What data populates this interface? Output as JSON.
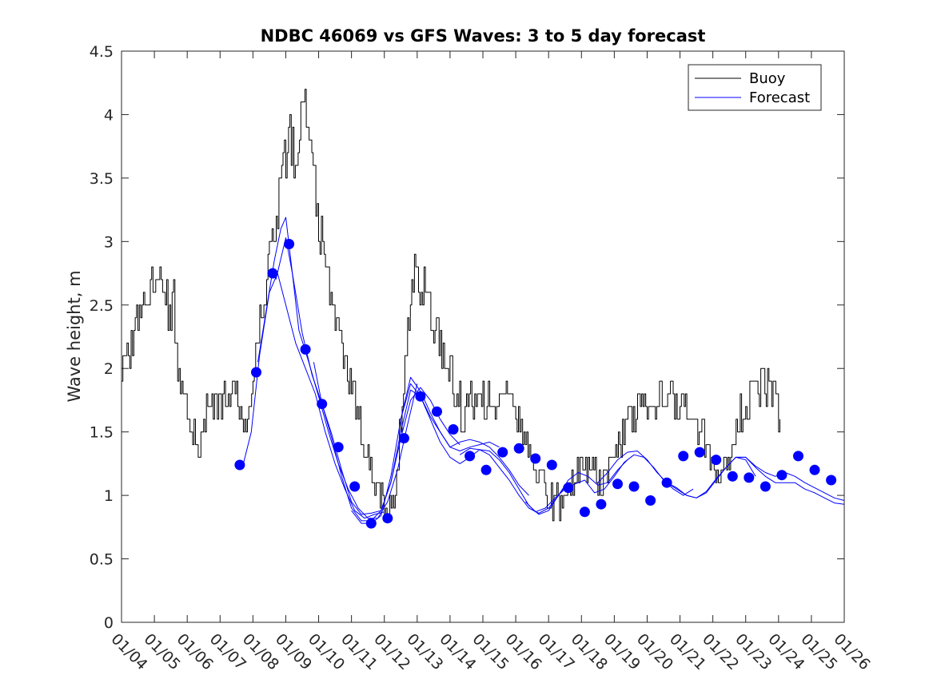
{
  "chart_data": {
    "type": "line",
    "title": "NDBC 46069 vs GFS Waves: 3 to 5 day forecast",
    "xlabel": "",
    "ylabel": "Wave height, m",
    "xlim": [
      0,
      22
    ],
    "ylim": [
      0,
      4.5
    ],
    "y_ticks": [
      0,
      0.5,
      1,
      1.5,
      2,
      2.5,
      3,
      3.5,
      4,
      4.5
    ],
    "y_tick_labels": [
      "0",
      "0.5",
      "1",
      "1.5",
      "2",
      "2.5",
      "3",
      "3.5",
      "4",
      "4.5"
    ],
    "x_tick_labels": [
      "01/04",
      "01/05",
      "01/06",
      "01/07",
      "01/08",
      "01/09",
      "01/10",
      "01/11",
      "01/12",
      "01/13",
      "01/14",
      "01/15",
      "01/16",
      "01/17",
      "01/18",
      "01/19",
      "01/20",
      "01/21",
      "01/22",
      "01/23",
      "01/24",
      "01/25",
      "01/26"
    ],
    "grid": false,
    "legend": {
      "position": "top-right",
      "entries": [
        {
          "label": "Buoy",
          "color": "#000000"
        },
        {
          "label": "Forecast",
          "color": "#0000ff"
        }
      ]
    },
    "buoy_anchors": [
      [
        0.0,
        2.0
      ],
      [
        0.3,
        2.2
      ],
      [
        0.6,
        2.5
      ],
      [
        0.9,
        2.6
      ],
      [
        1.1,
        2.9
      ],
      [
        1.3,
        2.5
      ],
      [
        1.6,
        2.5
      ],
      [
        1.7,
        2.0
      ],
      [
        1.9,
        1.7
      ],
      [
        2.1,
        1.6
      ],
      [
        2.35,
        1.2
      ],
      [
        2.6,
        1.7
      ],
      [
        2.9,
        1.7
      ],
      [
        3.2,
        1.8
      ],
      [
        3.5,
        1.8
      ],
      [
        3.7,
        1.6
      ],
      [
        3.9,
        1.8
      ],
      [
        4.2,
        2.4
      ],
      [
        4.5,
        2.8
      ],
      [
        4.7,
        3.2
      ],
      [
        4.9,
        3.6
      ],
      [
        5.1,
        3.8
      ],
      [
        5.3,
        3.6
      ],
      [
        5.55,
        4.1
      ],
      [
        5.8,
        3.6
      ],
      [
        6.0,
        3.1
      ],
      [
        6.3,
        2.7
      ],
      [
        6.6,
        2.3
      ],
      [
        6.9,
        2.0
      ],
      [
        7.2,
        1.6
      ],
      [
        7.5,
        1.3
      ],
      [
        7.7,
        1.1
      ],
      [
        7.9,
        1.0
      ],
      [
        8.1,
        0.85
      ],
      [
        8.3,
        1.0
      ],
      [
        8.5,
        1.6
      ],
      [
        8.7,
        2.4
      ],
      [
        8.85,
        2.8
      ],
      [
        9.0,
        2.7
      ],
      [
        9.2,
        2.6
      ],
      [
        9.5,
        2.4
      ],
      [
        9.8,
        2.1
      ],
      [
        10.1,
        1.9
      ],
      [
        10.4,
        1.6
      ],
      [
        10.7,
        1.8
      ],
      [
        11.0,
        1.8
      ],
      [
        11.3,
        1.7
      ],
      [
        11.6,
        1.8
      ],
      [
        11.9,
        1.7
      ],
      [
        12.2,
        1.5
      ],
      [
        12.5,
        1.3
      ],
      [
        12.8,
        1.1
      ],
      [
        13.0,
        0.95
      ],
      [
        13.2,
        0.95
      ],
      [
        13.4,
        0.95
      ],
      [
        13.6,
        1.05
      ],
      [
        13.9,
        1.2
      ],
      [
        14.2,
        1.2
      ],
      [
        14.5,
        1.1
      ],
      [
        14.8,
        1.2
      ],
      [
        15.1,
        1.4
      ],
      [
        15.4,
        1.6
      ],
      [
        15.7,
        1.7
      ],
      [
        16.0,
        1.7
      ],
      [
        16.3,
        1.75
      ],
      [
        16.6,
        1.8
      ],
      [
        16.9,
        1.7
      ],
      [
        17.2,
        1.65
      ],
      [
        17.5,
        1.55
      ],
      [
        17.8,
        1.4
      ],
      [
        18.1,
        1.2
      ],
      [
        18.3,
        1.2
      ],
      [
        18.5,
        1.3
      ],
      [
        18.8,
        1.6
      ],
      [
        19.1,
        1.8
      ],
      [
        19.4,
        1.9
      ],
      [
        19.7,
        1.8
      ],
      [
        19.9,
        1.8
      ],
      [
        20.05,
        1.5
      ]
    ],
    "buoy_start": 0.0,
    "buoy_end": 20.05,
    "forecast_runs": [
      [
        [
          3.7,
          1.24
        ],
        [
          3.95,
          1.5
        ],
        [
          4.2,
          2.1
        ],
        [
          4.5,
          2.6
        ],
        [
          4.75,
          2.75
        ],
        [
          5.0,
          2.5
        ],
        [
          5.3,
          2.2
        ],
        [
          5.6,
          2.0
        ],
        [
          5.9,
          1.8
        ],
        [
          6.2,
          1.5
        ],
        [
          6.5,
          1.25
        ],
        [
          6.8,
          1.05
        ],
        [
          7.1,
          0.88
        ],
        [
          7.4,
          0.82
        ],
        [
          7.7,
          0.85
        ],
        [
          8.0,
          0.87
        ]
      ],
      [
        [
          4.15,
          2.05
        ],
        [
          4.4,
          2.45
        ],
        [
          4.65,
          2.85
        ],
        [
          4.85,
          3.1
        ],
        [
          5.0,
          3.19
        ],
        [
          5.2,
          2.75
        ],
        [
          5.4,
          2.3
        ],
        [
          5.7,
          2.05
        ],
        [
          6.0,
          1.78
        ],
        [
          6.3,
          1.5
        ],
        [
          6.6,
          1.25
        ],
        [
          6.9,
          1.05
        ],
        [
          7.2,
          0.9
        ],
        [
          7.5,
          0.82
        ],
        [
          7.8,
          0.82
        ],
        [
          8.1,
          0.95
        ],
        [
          8.4,
          1.2
        ],
        [
          8.7,
          1.55
        ],
        [
          9.0,
          1.88
        ]
      ],
      [
        [
          4.7,
          2.7
        ],
        [
          5.0,
          3.03
        ],
        [
          5.2,
          2.75
        ],
        [
          5.5,
          2.28
        ],
        [
          5.8,
          1.95
        ],
        [
          6.1,
          1.72
        ],
        [
          6.4,
          1.45
        ],
        [
          6.7,
          1.15
        ],
        [
          7.0,
          0.9
        ],
        [
          7.3,
          0.8
        ],
        [
          7.6,
          0.8
        ],
        [
          7.9,
          0.88
        ],
        [
          8.2,
          1.1
        ],
        [
          8.5,
          1.45
        ],
        [
          8.8,
          1.75
        ],
        [
          9.1,
          1.85
        ],
        [
          9.4,
          1.75
        ],
        [
          9.7,
          1.6
        ],
        [
          10.0,
          1.48
        ],
        [
          10.3,
          1.4
        ]
      ],
      [
        [
          5.85,
          2.05
        ],
        [
          6.1,
          1.72
        ],
        [
          6.4,
          1.48
        ],
        [
          6.7,
          1.2
        ],
        [
          7.0,
          0.95
        ],
        [
          7.3,
          0.85
        ],
        [
          7.6,
          0.86
        ],
        [
          7.9,
          0.88
        ],
        [
          8.2,
          1.1
        ],
        [
          8.5,
          1.5
        ],
        [
          8.8,
          1.83
        ],
        [
          9.1,
          1.78
        ],
        [
          9.4,
          1.62
        ],
        [
          9.7,
          1.5
        ],
        [
          10.0,
          1.38
        ],
        [
          10.3,
          1.35
        ],
        [
          10.6,
          1.38
        ],
        [
          10.9,
          1.4
        ],
        [
          11.2,
          1.42
        ],
        [
          11.5,
          1.38
        ]
      ],
      [
        [
          7.0,
          0.88
        ],
        [
          7.3,
          0.78
        ],
        [
          7.6,
          0.78
        ],
        [
          7.9,
          0.84
        ],
        [
          8.2,
          1.15
        ],
        [
          8.5,
          1.6
        ],
        [
          8.8,
          1.93
        ],
        [
          9.1,
          1.82
        ],
        [
          9.4,
          1.65
        ],
        [
          9.7,
          1.5
        ],
        [
          10.0,
          1.38
        ],
        [
          10.3,
          1.42
        ],
        [
          10.6,
          1.44
        ],
        [
          10.9,
          1.42
        ],
        [
          11.2,
          1.38
        ],
        [
          11.5,
          1.3
        ],
        [
          11.8,
          1.2
        ],
        [
          12.1,
          1.08
        ],
        [
          12.4,
          1.0
        ]
      ],
      [
        [
          8.5,
          1.6
        ],
        [
          8.8,
          1.88
        ],
        [
          9.1,
          1.78
        ],
        [
          9.4,
          1.6
        ],
        [
          9.7,
          1.42
        ],
        [
          10.0,
          1.3
        ],
        [
          10.3,
          1.25
        ],
        [
          10.6,
          1.3
        ],
        [
          10.9,
          1.36
        ],
        [
          11.2,
          1.35
        ],
        [
          11.5,
          1.28
        ],
        [
          11.8,
          1.18
        ],
        [
          12.1,
          1.05
        ],
        [
          12.4,
          0.92
        ],
        [
          12.7,
          0.85
        ],
        [
          13.0,
          0.88
        ],
        [
          13.3,
          1.0
        ],
        [
          13.6,
          1.1
        ]
      ],
      [
        [
          10.3,
          1.32
        ],
        [
          10.6,
          1.37
        ],
        [
          10.9,
          1.36
        ],
        [
          11.2,
          1.32
        ],
        [
          11.5,
          1.22
        ],
        [
          11.8,
          1.12
        ],
        [
          12.1,
          1.0
        ],
        [
          12.4,
          0.9
        ],
        [
          12.7,
          0.86
        ],
        [
          13.0,
          0.9
        ],
        [
          13.3,
          1.0
        ],
        [
          13.6,
          1.12
        ],
        [
          13.9,
          1.18
        ],
        [
          14.2,
          1.15
        ],
        [
          14.5,
          1.08
        ],
        [
          14.8,
          1.1
        ],
        [
          15.1,
          1.2
        ],
        [
          15.4,
          1.28
        ]
      ],
      [
        [
          12.3,
          0.95
        ],
        [
          12.6,
          0.87
        ],
        [
          12.9,
          0.9
        ],
        [
          13.2,
          0.98
        ],
        [
          13.5,
          1.05
        ],
        [
          13.8,
          1.09
        ],
        [
          14.1,
          1.12
        ],
        [
          14.4,
          1.02
        ],
        [
          14.7,
          1.05
        ],
        [
          15.0,
          1.15
        ],
        [
          15.3,
          1.26
        ],
        [
          15.6,
          1.32
        ],
        [
          15.9,
          1.3
        ],
        [
          16.2,
          1.22
        ],
        [
          16.5,
          1.12
        ],
        [
          16.8,
          1.05
        ],
        [
          17.1,
          1.0
        ],
        [
          17.4,
          1.05
        ]
      ],
      [
        [
          14.5,
          1.1
        ],
        [
          14.8,
          1.18
        ],
        [
          15.1,
          1.28
        ],
        [
          15.4,
          1.34
        ],
        [
          15.7,
          1.35
        ],
        [
          16.0,
          1.28
        ],
        [
          16.3,
          1.18
        ],
        [
          16.6,
          1.1
        ],
        [
          16.9,
          1.05
        ],
        [
          17.2,
          1.0
        ],
        [
          17.5,
          0.98
        ],
        [
          17.8,
          1.02
        ],
        [
          18.1,
          1.12
        ],
        [
          18.4,
          1.22
        ],
        [
          18.7,
          1.3
        ],
        [
          19.0,
          1.28
        ],
        [
          19.3,
          1.15
        ]
      ],
      [
        [
          16.6,
          1.1
        ],
        [
          16.9,
          1.06
        ],
        [
          17.2,
          1.0
        ],
        [
          17.5,
          0.98
        ],
        [
          17.8,
          1.03
        ],
        [
          18.1,
          1.13
        ],
        [
          18.4,
          1.22
        ],
        [
          18.7,
          1.3
        ],
        [
          19.0,
          1.3
        ],
        [
          19.3,
          1.22
        ],
        [
          19.6,
          1.15
        ],
        [
          19.9,
          1.1
        ],
        [
          20.2,
          1.1
        ],
        [
          20.5,
          1.1
        ],
        [
          20.8,
          1.05
        ],
        [
          21.1,
          1.02
        ],
        [
          21.4,
          0.98
        ],
        [
          21.7,
          0.94
        ],
        [
          22.0,
          0.93
        ]
      ],
      [
        [
          18.7,
          1.3
        ],
        [
          19.0,
          1.3
        ],
        [
          19.3,
          1.23
        ],
        [
          19.6,
          1.18
        ],
        [
          19.9,
          1.15
        ],
        [
          20.2,
          1.18
        ],
        [
          20.5,
          1.15
        ],
        [
          20.8,
          1.1
        ],
        [
          21.1,
          1.06
        ],
        [
          21.4,
          1.02
        ],
        [
          21.7,
          0.98
        ],
        [
          22.0,
          0.96
        ]
      ]
    ],
    "forecast_markers": [
      [
        3.6,
        1.24
      ],
      [
        4.1,
        1.97
      ],
      [
        4.6,
        2.75
      ],
      [
        5.1,
        2.98
      ],
      [
        5.6,
        2.15
      ],
      [
        6.1,
        1.72
      ],
      [
        6.6,
        1.38
      ],
      [
        7.1,
        1.07
      ],
      [
        7.6,
        0.78
      ],
      [
        8.1,
        0.82
      ],
      [
        8.6,
        1.45
      ],
      [
        9.1,
        1.78
      ],
      [
        9.6,
        1.66
      ],
      [
        10.1,
        1.52
      ],
      [
        10.6,
        1.31
      ],
      [
        11.1,
        1.2
      ],
      [
        11.6,
        1.34
      ],
      [
        12.1,
        1.37
      ],
      [
        12.6,
        1.29
      ],
      [
        13.1,
        1.24
      ],
      [
        13.6,
        1.06
      ],
      [
        14.1,
        0.87
      ],
      [
        14.6,
        0.93
      ],
      [
        15.1,
        1.09
      ],
      [
        15.6,
        1.07
      ],
      [
        16.1,
        0.96
      ],
      [
        16.6,
        1.1
      ],
      [
        17.1,
        1.31
      ],
      [
        17.6,
        1.34
      ],
      [
        18.1,
        1.28
      ],
      [
        18.6,
        1.15
      ],
      [
        19.1,
        1.14
      ],
      [
        19.6,
        1.07
      ],
      [
        20.1,
        1.16
      ],
      [
        20.6,
        1.31
      ],
      [
        21.1,
        1.2
      ],
      [
        21.6,
        1.12
      ]
    ]
  }
}
